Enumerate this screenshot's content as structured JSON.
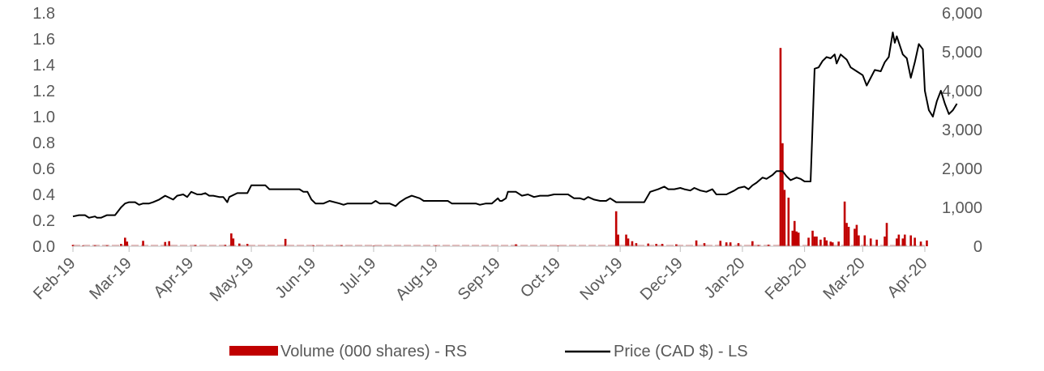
{
  "chart_data": {
    "type": "bar+line",
    "title": "",
    "x_tick_labels": [
      "Feb-19",
      "Mar-19",
      "Apr-19",
      "May-19",
      "Jun-19",
      "Jul-19",
      "Aug-19",
      "Sep-19",
      "Oct-19",
      "Nov-19",
      "Dec-19",
      "Jan-20",
      "Feb-20",
      "Mar-20",
      "Apr-20"
    ],
    "left_axis": {
      "ticks": [
        "0.0",
        "0.2",
        "0.4",
        "0.6",
        "0.8",
        "1.0",
        "1.2",
        "1.4",
        "1.6",
        "1.8"
      ],
      "range": [
        0,
        1.8
      ]
    },
    "right_axis": {
      "ticks": [
        "0",
        "1,000",
        "2,000",
        "3,000",
        "4,000",
        "5,000",
        "6,000"
      ],
      "range": [
        0,
        6000
      ]
    },
    "series": [
      {
        "name": "Volume (000 shares) - RS",
        "kind": "bar",
        "axis": "right",
        "color": "#C00000",
        "points": [
          [
            "2019-02-01",
            35
          ],
          [
            "2019-02-06",
            20
          ],
          [
            "2019-02-12",
            25
          ],
          [
            "2019-02-18",
            25
          ],
          [
            "2019-02-25",
            60
          ],
          [
            "2019-02-27",
            220
          ],
          [
            "2019-02-28",
            120
          ],
          [
            "2019-03-08",
            140
          ],
          [
            "2019-03-19",
            110
          ],
          [
            "2019-03-21",
            130
          ],
          [
            "2019-04-03",
            30
          ],
          [
            "2019-04-18",
            35
          ],
          [
            "2019-04-21",
            330
          ],
          [
            "2019-04-22",
            200
          ],
          [
            "2019-04-25",
            70
          ],
          [
            "2019-04-29",
            60
          ],
          [
            "2019-05-18",
            190
          ],
          [
            "2019-06-01",
            25
          ],
          [
            "2019-06-15",
            25
          ],
          [
            "2019-07-01",
            20
          ],
          [
            "2019-08-01",
            20
          ],
          [
            "2019-09-10",
            50
          ],
          [
            "2019-10-01",
            25
          ],
          [
            "2019-10-30",
            900
          ],
          [
            "2019-10-31",
            300
          ],
          [
            "2019-11-04",
            300
          ],
          [
            "2019-11-05",
            200
          ],
          [
            "2019-11-07",
            130
          ],
          [
            "2019-11-09",
            80
          ],
          [
            "2019-11-15",
            70
          ],
          [
            "2019-11-19",
            60
          ],
          [
            "2019-11-22",
            60
          ],
          [
            "2019-11-29",
            50
          ],
          [
            "2019-12-09",
            150
          ],
          [
            "2019-12-13",
            80
          ],
          [
            "2019-12-21",
            140
          ],
          [
            "2019-12-24",
            100
          ],
          [
            "2019-12-26",
            100
          ],
          [
            "2019-12-30",
            80
          ],
          [
            "2020-01-06",
            130
          ],
          [
            "2020-01-09",
            30
          ],
          [
            "2020-01-14",
            40
          ],
          [
            "2020-01-20",
            5100
          ],
          [
            "2020-01-21",
            2650
          ],
          [
            "2020-01-22",
            1450
          ],
          [
            "2020-01-24",
            1250
          ],
          [
            "2020-01-26",
            400
          ],
          [
            "2020-01-27",
            650
          ],
          [
            "2020-01-28",
            380
          ],
          [
            "2020-01-29",
            350
          ],
          [
            "2020-02-03",
            220
          ],
          [
            "2020-02-05",
            400
          ],
          [
            "2020-02-06",
            250
          ],
          [
            "2020-02-07",
            250
          ],
          [
            "2020-02-09",
            170
          ],
          [
            "2020-02-11",
            230
          ],
          [
            "2020-02-12",
            150
          ],
          [
            "2020-02-14",
            120
          ],
          [
            "2020-02-15",
            100
          ],
          [
            "2020-02-18",
            120
          ],
          [
            "2020-02-21",
            1150
          ],
          [
            "2020-02-22",
            600
          ],
          [
            "2020-02-23",
            500
          ],
          [
            "2020-02-26",
            450
          ],
          [
            "2020-02-27",
            550
          ],
          [
            "2020-02-28",
            280
          ],
          [
            "2020-03-02",
            280
          ],
          [
            "2020-03-05",
            200
          ],
          [
            "2020-03-08",
            170
          ],
          [
            "2020-03-12",
            250
          ],
          [
            "2020-03-13",
            600
          ],
          [
            "2020-03-18",
            200
          ],
          [
            "2020-03-19",
            300
          ],
          [
            "2020-03-21",
            200
          ],
          [
            "2020-03-22",
            300
          ],
          [
            "2020-03-25",
            280
          ],
          [
            "2020-03-27",
            220
          ],
          [
            "2020-03-30",
            120
          ],
          [
            "2020-04-02",
            150
          ]
        ]
      },
      {
        "name": "Price (CAD $) - LS",
        "kind": "line",
        "axis": "left",
        "color": "#000000",
        "points": [
          [
            "2019-02-01",
            0.23
          ],
          [
            "2019-02-04",
            0.24
          ],
          [
            "2019-02-07",
            0.24
          ],
          [
            "2019-02-09",
            0.22
          ],
          [
            "2019-02-12",
            0.23
          ],
          [
            "2019-02-13",
            0.22
          ],
          [
            "2019-02-15",
            0.22
          ],
          [
            "2019-02-18",
            0.24
          ],
          [
            "2019-02-22",
            0.24
          ],
          [
            "2019-02-25",
            0.3
          ],
          [
            "2019-02-27",
            0.33
          ],
          [
            "2019-03-01",
            0.34
          ],
          [
            "2019-03-04",
            0.34
          ],
          [
            "2019-03-06",
            0.32
          ],
          [
            "2019-03-08",
            0.33
          ],
          [
            "2019-03-11",
            0.33
          ],
          [
            "2019-03-13",
            0.34
          ],
          [
            "2019-03-16",
            0.36
          ],
          [
            "2019-03-19",
            0.39
          ],
          [
            "2019-03-23",
            0.36
          ],
          [
            "2019-03-25",
            0.39
          ],
          [
            "2019-03-28",
            0.4
          ],
          [
            "2019-03-30",
            0.38
          ],
          [
            "2019-04-01",
            0.42
          ],
          [
            "2019-04-04",
            0.4
          ],
          [
            "2019-04-06",
            0.4
          ],
          [
            "2019-04-08",
            0.41
          ],
          [
            "2019-04-10",
            0.39
          ],
          [
            "2019-04-12",
            0.39
          ],
          [
            "2019-04-15",
            0.38
          ],
          [
            "2019-04-17",
            0.38
          ],
          [
            "2019-04-19",
            0.34
          ],
          [
            "2019-04-20",
            0.38
          ],
          [
            "2019-04-24",
            0.41
          ],
          [
            "2019-04-29",
            0.41
          ],
          [
            "2019-05-01",
            0.47
          ],
          [
            "2019-05-08",
            0.47
          ],
          [
            "2019-05-10",
            0.44
          ],
          [
            "2019-05-25",
            0.44
          ],
          [
            "2019-05-27",
            0.42
          ],
          [
            "2019-05-29",
            0.42
          ],
          [
            "2019-05-31",
            0.36
          ],
          [
            "2019-06-02",
            0.33
          ],
          [
            "2019-06-06",
            0.33
          ],
          [
            "2019-06-09",
            0.35
          ],
          [
            "2019-06-14",
            0.33
          ],
          [
            "2019-06-16",
            0.32
          ],
          [
            "2019-06-18",
            0.33
          ],
          [
            "2019-06-30",
            0.33
          ],
          [
            "2019-07-02",
            0.35
          ],
          [
            "2019-07-04",
            0.33
          ],
          [
            "2019-07-09",
            0.33
          ],
          [
            "2019-07-12",
            0.31
          ],
          [
            "2019-07-14",
            0.34
          ],
          [
            "2019-07-17",
            0.37
          ],
          [
            "2019-07-20",
            0.39
          ],
          [
            "2019-07-24",
            0.37
          ],
          [
            "2019-07-26",
            0.35
          ],
          [
            "2019-08-07",
            0.35
          ],
          [
            "2019-08-09",
            0.33
          ],
          [
            "2019-08-21",
            0.33
          ],
          [
            "2019-08-23",
            0.32
          ],
          [
            "2019-08-26",
            0.33
          ],
          [
            "2019-08-29",
            0.33
          ],
          [
            "2019-09-01",
            0.37
          ],
          [
            "2019-09-02",
            0.35
          ],
          [
            "2019-09-03",
            0.35
          ],
          [
            "2019-09-05",
            0.37
          ],
          [
            "2019-09-06",
            0.42
          ],
          [
            "2019-09-10",
            0.42
          ],
          [
            "2019-09-13",
            0.39
          ],
          [
            "2019-09-16",
            0.4
          ],
          [
            "2019-09-19",
            0.38
          ],
          [
            "2019-09-22",
            0.39
          ],
          [
            "2019-09-26",
            0.39
          ],
          [
            "2019-09-29",
            0.4
          ],
          [
            "2019-10-06",
            0.4
          ],
          [
            "2019-10-09",
            0.37
          ],
          [
            "2019-10-12",
            0.37
          ],
          [
            "2019-10-14",
            0.36
          ],
          [
            "2019-10-16",
            0.38
          ],
          [
            "2019-10-19",
            0.36
          ],
          [
            "2019-10-22",
            0.35
          ],
          [
            "2019-10-25",
            0.35
          ],
          [
            "2019-10-27",
            0.37
          ],
          [
            "2019-10-30",
            0.34
          ],
          [
            "2019-11-09",
            0.34
          ],
          [
            "2019-11-13",
            0.34
          ],
          [
            "2019-11-16",
            0.42
          ],
          [
            "2019-11-20",
            0.44
          ],
          [
            "2019-11-23",
            0.46
          ],
          [
            "2019-11-25",
            0.44
          ],
          [
            "2019-11-28",
            0.44
          ],
          [
            "2019-12-01",
            0.45
          ],
          [
            "2019-12-03",
            0.44
          ],
          [
            "2019-12-06",
            0.43
          ],
          [
            "2019-12-08",
            0.45
          ],
          [
            "2019-12-11",
            0.43
          ],
          [
            "2019-12-14",
            0.42
          ],
          [
            "2019-12-17",
            0.44
          ],
          [
            "2019-12-19",
            0.4
          ],
          [
            "2019-12-24",
            0.4
          ],
          [
            "2019-12-28",
            0.43
          ],
          [
            "2019-12-30",
            0.45
          ],
          [
            "2020-01-02",
            0.46
          ],
          [
            "2020-01-04",
            0.44
          ],
          [
            "2020-01-06",
            0.47
          ],
          [
            "2020-01-08",
            0.49
          ],
          [
            "2020-01-11",
            0.53
          ],
          [
            "2020-01-13",
            0.52
          ],
          [
            "2020-01-16",
            0.55
          ],
          [
            "2020-01-18",
            0.58
          ],
          [
            "2020-01-21",
            0.58
          ],
          [
            "2020-01-23",
            0.54
          ],
          [
            "2020-01-25",
            0.51
          ],
          [
            "2020-01-28",
            0.53
          ],
          [
            "2020-01-30",
            0.52
          ],
          [
            "2020-02-01",
            0.5
          ],
          [
            "2020-02-04",
            0.5
          ],
          [
            "2020-02-06",
            1.37
          ],
          [
            "2020-02-08",
            1.38
          ],
          [
            "2020-02-10",
            1.43
          ],
          [
            "2020-02-12",
            1.46
          ],
          [
            "2020-02-14",
            1.45
          ],
          [
            "2020-02-16",
            1.48
          ],
          [
            "2020-02-17",
            1.41
          ],
          [
            "2020-02-19",
            1.48
          ],
          [
            "2020-02-22",
            1.44
          ],
          [
            "2020-02-24",
            1.38
          ],
          [
            "2020-02-27",
            1.35
          ],
          [
            "2020-03-01",
            1.32
          ],
          [
            "2020-03-03",
            1.24
          ],
          [
            "2020-03-05",
            1.3
          ],
          [
            "2020-03-07",
            1.36
          ],
          [
            "2020-03-10",
            1.35
          ],
          [
            "2020-03-12",
            1.42
          ],
          [
            "2020-03-14",
            1.46
          ],
          [
            "2020-03-16",
            1.65
          ],
          [
            "2020-03-17",
            1.57
          ],
          [
            "2020-03-18",
            1.62
          ],
          [
            "2020-03-21",
            1.48
          ],
          [
            "2020-03-23",
            1.45
          ],
          [
            "2020-03-25",
            1.3
          ],
          [
            "2020-03-27",
            1.42
          ],
          [
            "2020-03-29",
            1.56
          ],
          [
            "2020-03-31",
            1.52
          ],
          [
            "2020-04-01",
            1.2
          ],
          [
            "2020-04-03",
            1.05
          ],
          [
            "2020-04-05",
            1.0
          ],
          [
            "2020-04-07",
            1.12
          ],
          [
            "2020-04-09",
            1.2
          ],
          [
            "2020-04-11",
            1.1
          ],
          [
            "2020-04-13",
            1.02
          ],
          [
            "2020-04-15",
            1.05
          ],
          [
            "2020-04-17",
            1.1
          ]
        ]
      }
    ],
    "legend_position": "bottom-center",
    "grid": false
  }
}
